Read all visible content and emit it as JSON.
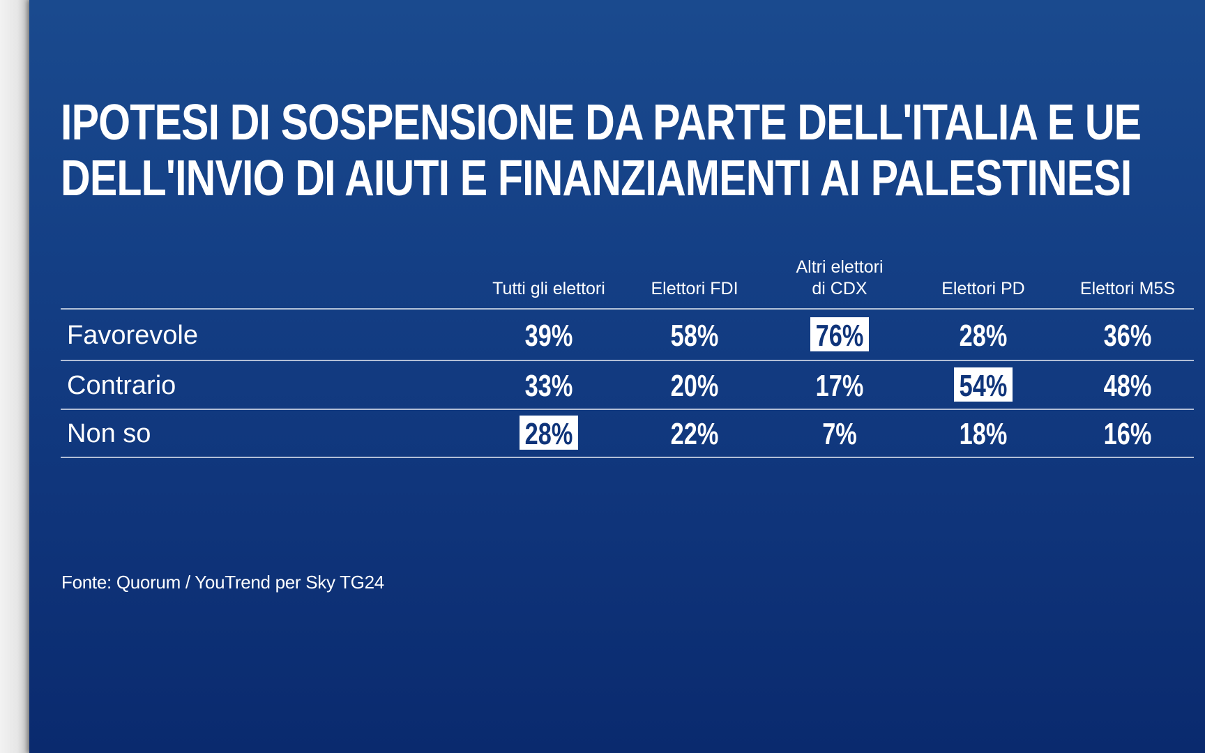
{
  "title_lines": [
    "IPOTESI DI SOSPENSIONE DA PARTE DELL'ITALIA E UE",
    "DELL'INVIO DI AIUTI E FINANZIAMENTI AI PALESTINESI"
  ],
  "source": "Fonte: Quorum / YouTrend per Sky TG24",
  "colors": {
    "background_top": "#1a4a8e",
    "background_bottom": "#0a2a6e",
    "text": "#ffffff",
    "highlight_box": "#ffffff",
    "highlight_text": "#0f347a"
  },
  "chart_data": {
    "type": "table",
    "columns": [
      [
        "Tutti gli elettori"
      ],
      [
        "Elettori FDI"
      ],
      [
        "Altri elettori",
        "di CDX"
      ],
      [
        "Elettori PD"
      ],
      [
        "Elettori M5S"
      ]
    ],
    "rows": [
      {
        "label": "Favorevole",
        "values": [
          "39%",
          "58%",
          "76%",
          "28%",
          "36%"
        ],
        "highlight": 2
      },
      {
        "label": "Contrario",
        "values": [
          "33%",
          "20%",
          "17%",
          "54%",
          "48%"
        ],
        "highlight": 3
      },
      {
        "label": "Non so",
        "values": [
          "28%",
          "22%",
          "7%",
          "18%",
          "16%"
        ],
        "highlight": 0
      }
    ]
  }
}
